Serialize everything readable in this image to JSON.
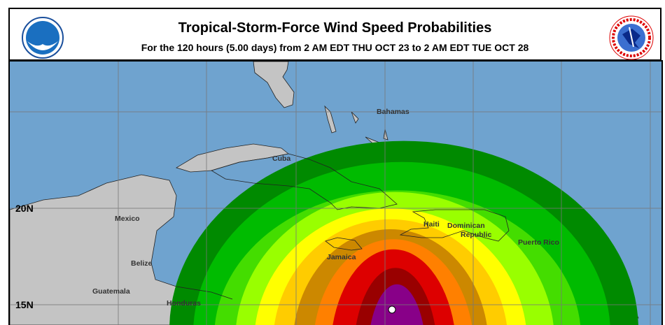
{
  "header": {
    "title": "Tropical-Storm-Force Wind Speed Probabilities",
    "subtitle": "For the 120 hours (5.00 days) from 2 AM EDT THU OCT 23 to 2 AM EDT TUE OCT 28",
    "left_logo": "NOAA",
    "right_logo": "NATIONAL WEATHER SERVICE"
  },
  "map": {
    "latitude_labels": [
      "20N",
      "15N"
    ],
    "place_labels": {
      "bahamas": "Bahamas",
      "cuba": "Cuba",
      "mexico": "Mexico",
      "belize": "Belize",
      "guatemala": "Guatemala",
      "honduras": "Honduras",
      "haiti": "Haiti",
      "dominican_1": "Dominican",
      "dominican_2": "Republic",
      "puerto_rico": "Puerto Rico",
      "jamaica": "Jamaica"
    },
    "colors": {
      "ocean": "#6fa3cf",
      "land": "#c4c4c4",
      "contours": [
        "#008a00",
        "#00bb00",
        "#44dd00",
        "#99ff00",
        "#ffff00",
        "#ffcc00",
        "#cc8800",
        "#ff8000",
        "#dd0000",
        "#990000",
        "#880088"
      ]
    },
    "storm_center_marker": "white-dot"
  }
}
